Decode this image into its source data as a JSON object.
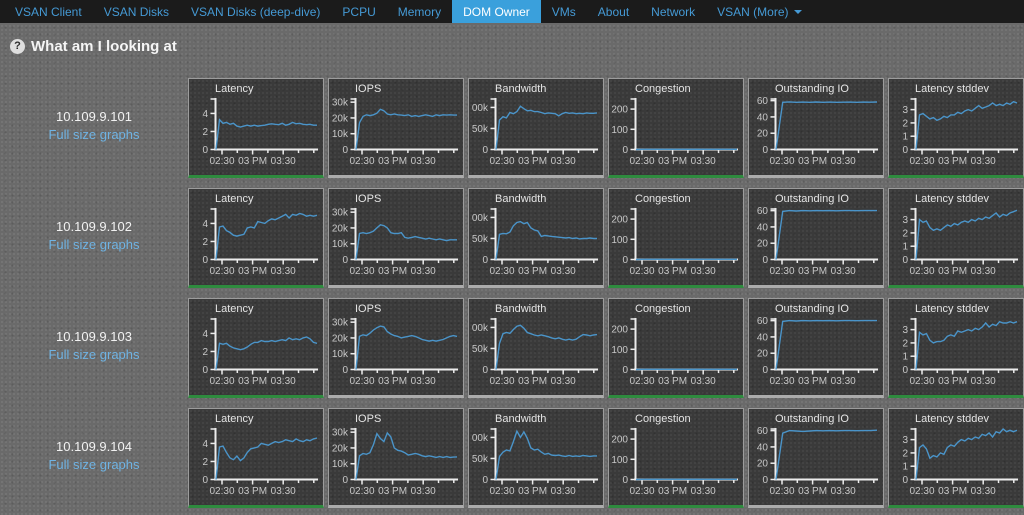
{
  "navbar": {
    "items": [
      {
        "label": "VSAN Client"
      },
      {
        "label": "VSAN Disks"
      },
      {
        "label": "VSAN Disks (deep-dive)"
      },
      {
        "label": "PCPU"
      },
      {
        "label": "Memory"
      },
      {
        "label": "DOM Owner",
        "active": true
      },
      {
        "label": "VMs"
      },
      {
        "label": "About"
      },
      {
        "label": "Network"
      },
      {
        "label": "VSAN (More)",
        "caret": true
      }
    ]
  },
  "header": {
    "icon_glyph": "?",
    "title": "What am I looking at"
  },
  "links": {
    "full_size": "Full size graphs"
  },
  "colors": {
    "nav_bg": "#1b1b1b",
    "nav_link": "#459ad5",
    "active_tab": "#3aa0dc",
    "page_bg": "#6a6a6a",
    "panel_bg": "#3a3a3a",
    "axis": "#ececec",
    "tick_label": "#c8c8c8",
    "chart_line": "#4a94c9",
    "ok_green": "#2e8b3e",
    "border_gray": "#ababab"
  },
  "chart_data": {
    "type": "line",
    "x_axis": {
      "tick_times_min": [
        150,
        165,
        180,
        195,
        210,
        225,
        240
      ],
      "labels": {
        "150": "02:30",
        "180": "03 PM",
        "210": "03:30"
      }
    },
    "metrics": [
      {
        "key": "latency",
        "title": "Latency",
        "y_ticks": [
          [
            0,
            "0"
          ],
          [
            2,
            "2"
          ],
          [
            4,
            "4"
          ]
        ],
        "y_top": 5.6,
        "bottom": "green"
      },
      {
        "key": "iops",
        "title": "IOPS",
        "y_ticks": [
          [
            0,
            "0"
          ],
          [
            10,
            "10k"
          ],
          [
            20,
            "20k"
          ],
          [
            30,
            "30k"
          ]
        ],
        "y_top": 32,
        "bottom": "gray"
      },
      {
        "key": "bandwidth",
        "title": "Bandwidth",
        "y_ticks": [
          [
            0,
            "0"
          ],
          [
            50,
            "50k"
          ],
          [
            100,
            "00k"
          ]
        ],
        "y_top": 120,
        "bottom": "gray"
      },
      {
        "key": "congestion",
        "title": "Congestion",
        "y_ticks": [
          [
            0,
            "0"
          ],
          [
            100,
            "100"
          ],
          [
            200,
            "200"
          ]
        ],
        "y_top": 250,
        "bottom": "green"
      },
      {
        "key": "oio",
        "title": "Outstanding IO",
        "y_ticks": [
          [
            0,
            "0"
          ],
          [
            20,
            "20"
          ],
          [
            40,
            "40"
          ],
          [
            60,
            "60"
          ]
        ],
        "y_top": 62,
        "bottom": "gray"
      },
      {
        "key": "stddev",
        "title": "Latency stddev",
        "y_ticks": [
          [
            0,
            "0"
          ],
          [
            1,
            "1"
          ],
          [
            2,
            "2"
          ],
          [
            3,
            "3"
          ]
        ],
        "y_top": 3.8,
        "bottom": "green"
      }
    ],
    "rows": [
      {
        "host": "10.109.9.101",
        "series": {
          "latency": [
            0,
            3.3,
            2.9,
            3.0,
            2.8,
            2.9,
            2.6,
            2.5,
            2.6,
            2.7,
            2.6,
            2.7,
            2.6,
            2.65,
            2.7,
            2.8,
            2.85,
            2.8,
            2.75,
            2.9,
            2.7,
            2.8,
            3.0,
            2.85,
            2.9,
            2.8,
            2.75,
            2.8,
            2.7,
            2.7
          ],
          "iops": [
            0,
            17,
            21,
            22,
            21.5,
            22,
            23,
            25.5,
            24.5,
            22.5,
            22,
            22.5,
            22,
            21.8,
            21.5,
            22,
            21,
            21.5,
            21,
            21.5,
            22,
            21.5,
            21,
            22,
            21.5,
            22,
            21.8,
            22,
            21.8,
            21.8
          ],
          "bandwidth": [
            0,
            70,
            78,
            75,
            88,
            85,
            90,
            103,
            97,
            92,
            93,
            90,
            90,
            88,
            85,
            87,
            86,
            85,
            80,
            85,
            88,
            86,
            87,
            85,
            86,
            85,
            87,
            86,
            86,
            87
          ],
          "congestion": [
            0,
            1,
            1,
            1,
            1,
            1,
            1,
            1,
            1,
            1,
            1,
            1
          ],
          "oio": [
            0,
            58,
            58.5,
            58,
            58.2,
            58,
            58.3,
            58,
            58.2,
            58,
            58.1,
            58.2,
            58,
            58.2,
            58.1,
            58.3
          ],
          "stddev": [
            0,
            2.6,
            2.7,
            2.5,
            2.3,
            2.4,
            2.2,
            2.3,
            2.5,
            2.4,
            2.6,
            2.6,
            2.8,
            2.7,
            2.9,
            3.0,
            2.9,
            3.1,
            3.3,
            3.1,
            3.2,
            3.3,
            3.5,
            3.3,
            3.4,
            3.3,
            3.5,
            3.4,
            3.6,
            3.5
          ]
        }
      },
      {
        "host": "10.109.9.102",
        "series": {
          "latency": [
            0,
            3.6,
            3.7,
            3.2,
            3.0,
            2.7,
            2.6,
            2.7,
            2.8,
            3.5,
            3.6,
            3.5,
            4.2,
            4.1,
            4.0,
            4.3,
            4.5,
            4.4,
            4.6,
            4.8,
            5.0,
            4.6,
            5.0,
            4.9,
            5.1,
            5.0,
            4.8,
            4.9,
            4.8,
            4.9
          ],
          "iops": [
            0,
            16.5,
            17,
            16.5,
            17,
            18,
            20,
            22,
            21.5,
            20,
            17,
            16.5,
            16.5,
            17,
            14,
            13.5,
            14,
            14.5,
            14,
            13.5,
            13,
            13.5,
            13,
            12.5,
            13,
            12.5,
            12,
            12.5,
            12.5,
            12.5
          ],
          "bandwidth": [
            0,
            60,
            62,
            61,
            65,
            80,
            88,
            90,
            85,
            88,
            75,
            70,
            68,
            55,
            57,
            56,
            55,
            54,
            53,
            52,
            51,
            52,
            50,
            51,
            49,
            50,
            50,
            51,
            50,
            50
          ],
          "congestion": [
            0,
            1,
            1,
            1,
            1,
            1,
            1,
            1,
            1,
            1,
            1,
            1
          ],
          "oio": [
            0,
            59,
            60,
            59.5,
            60,
            59.8,
            60,
            59.9,
            60,
            59.8,
            60,
            60,
            59.9,
            60,
            60,
            60
          ],
          "stddev": [
            0,
            3.0,
            2.8,
            2.9,
            2.4,
            2.2,
            2.3,
            2.2,
            2.4,
            2.6,
            2.5,
            2.7,
            2.6,
            2.8,
            2.9,
            2.8,
            3.0,
            2.9,
            3.1,
            3.0,
            3.2,
            3.1,
            3.3,
            3.5,
            3.2,
            3.4,
            3.3,
            3.5,
            3.6,
            3.7
          ]
        }
      },
      {
        "host": "10.109.9.103",
        "series": {
          "latency": [
            0,
            2.9,
            2.8,
            2.9,
            2.6,
            2.4,
            2.3,
            2.2,
            2.3,
            2.5,
            2.8,
            3.0,
            3.0,
            3.2,
            3.1,
            3.1,
            3.2,
            3.1,
            3.2,
            3.3,
            3.2,
            3.5,
            3.3,
            3.4,
            3.3,
            3.5,
            3.6,
            3.4,
            3.0,
            2.9
          ],
          "iops": [
            0,
            21,
            22,
            21.5,
            23,
            25,
            26.5,
            27.5,
            27,
            24,
            22.5,
            21.5,
            21,
            20,
            20.5,
            21,
            21.5,
            21,
            20,
            19,
            18.5,
            18,
            18.5,
            18,
            18.5,
            19,
            20,
            21,
            21.5,
            21
          ],
          "bandwidth": [
            0,
            62,
            85,
            88,
            86,
            95,
            103,
            105,
            98,
            88,
            85,
            82,
            80,
            82,
            80,
            78,
            75,
            73,
            75,
            72,
            70,
            72,
            70,
            72,
            78,
            83,
            82,
            80,
            82,
            83
          ],
          "congestion": [
            0,
            1,
            1,
            1,
            1,
            1,
            1,
            1,
            1,
            1,
            1,
            1
          ],
          "oio": [
            0,
            59,
            60,
            59.5,
            60,
            59.8,
            60,
            59.9,
            60,
            59.8,
            60,
            60,
            59.9,
            60,
            60,
            60
          ],
          "stddev": [
            0,
            2.8,
            2.6,
            2.7,
            2.2,
            2.0,
            2.1,
            2.1,
            2.2,
            2.5,
            2.6,
            2.5,
            2.9,
            2.8,
            2.9,
            3.0,
            2.9,
            3.1,
            3.0,
            3.2,
            3.5,
            3.2,
            3.4,
            3.3,
            3.6,
            3.5,
            3.5,
            3.6,
            3.5,
            3.6
          ]
        }
      },
      {
        "host": "10.109.9.104",
        "series": {
          "latency": [
            0,
            3.6,
            3.7,
            3.0,
            2.4,
            2.2,
            2.6,
            2.1,
            2.4,
            3.0,
            3.4,
            3.5,
            3.6,
            4.0,
            3.9,
            3.8,
            4.0,
            4.2,
            4.1,
            4.2,
            4.4,
            4.3,
            4.2,
            4.5,
            4.3,
            4.2,
            4.4,
            4.3,
            4.5,
            4.6
          ],
          "iops": [
            0,
            15,
            16.5,
            16,
            17,
            22,
            29,
            26,
            24,
            29.5,
            27,
            20,
            18.5,
            18,
            17,
            15.5,
            16,
            16.5,
            16,
            15,
            14.5,
            15,
            14.5,
            14,
            14.5,
            14,
            14.5,
            14,
            14.2,
            14.3
          ],
          "bandwidth": [
            0,
            55,
            65,
            70,
            68,
            90,
            115,
            100,
            113,
            98,
            75,
            70,
            72,
            65,
            60,
            62,
            58,
            57,
            58,
            56,
            55,
            57,
            55,
            56,
            55,
            57,
            56,
            55,
            56,
            56
          ],
          "congestion": [
            0,
            1,
            1,
            1,
            1,
            1,
            1,
            1,
            1,
            1,
            1,
            1
          ],
          "oio": [
            0,
            57,
            60,
            59.5,
            59,
            59.5,
            60,
            59.8,
            60,
            59.8,
            60,
            60,
            59.9,
            60,
            60,
            60.5
          ],
          "stddev": [
            0,
            2.4,
            2.6,
            2.3,
            1.6,
            1.8,
            1.7,
            2.0,
            1.9,
            2.4,
            2.6,
            2.5,
            2.8,
            3.0,
            2.9,
            3.1,
            3.0,
            3.2,
            3.1,
            3.4,
            3.3,
            3.5,
            3.2,
            3.6,
            3.5,
            3.8,
            3.6,
            3.7,
            3.6,
            3.7
          ]
        }
      }
    ]
  }
}
